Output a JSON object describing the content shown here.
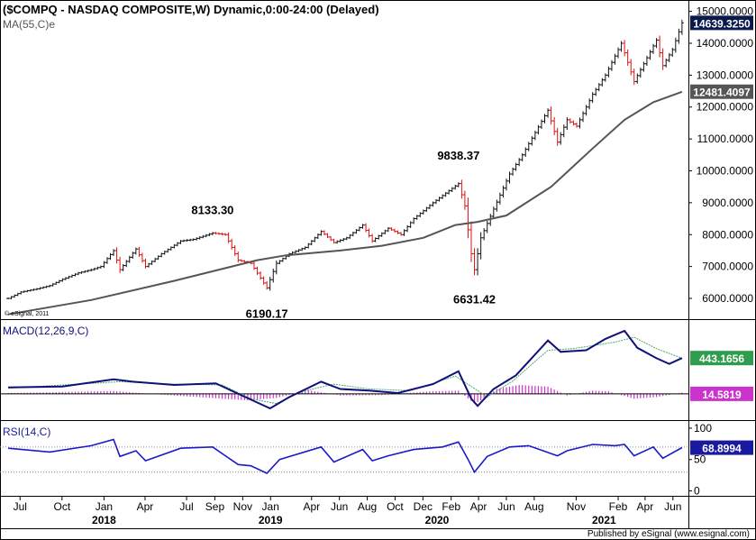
{
  "chart_data": [
    {
      "type": "ohlc",
      "title": "($COMPQ - NASDAQ COMPOSITE,W) Dynamic,0:00-24:00 (Delayed)",
      "overlay_label": "MA(55,C)e",
      "watermark": "© eSignal, 2011",
      "yticks": [
        "15000.0000",
        "14000.0000",
        "13000.0000",
        "12000.0000",
        "11000.0000",
        "10000.0000",
        "9000.0000",
        "8000.0000",
        "7000.0000",
        "6000.0000"
      ],
      "ylim": [
        5350,
        15300
      ],
      "last_price": "14639.3250",
      "ma_last": "12481.4097",
      "annotations": [
        {
          "text": "8133.30",
          "date": "2018-08-27",
          "value": 8133.3
        },
        {
          "text": "6190.17",
          "date": "2018-12-24",
          "value": 6190.17
        },
        {
          "text": "9838.37",
          "date": "2020-02-17",
          "value": 9838.37
        },
        {
          "text": "6631.42",
          "date": "2020-03-23",
          "value": 6631.42
        }
      ],
      "close_points": [
        [
          "2017-06-05",
          6000
        ],
        [
          "2017-07-03",
          6200
        ],
        [
          "2017-08-07",
          6300
        ],
        [
          "2017-09-04",
          6400
        ],
        [
          "2017-10-02",
          6600
        ],
        [
          "2017-11-06",
          6800
        ],
        [
          "2017-12-04",
          6900
        ],
        [
          "2017-12-25",
          7000
        ],
        [
          "2018-01-22",
          7500
        ],
        [
          "2018-02-05",
          6900
        ],
        [
          "2018-03-12",
          7550
        ],
        [
          "2018-04-02",
          7000
        ],
        [
          "2018-05-07",
          7400
        ],
        [
          "2018-06-18",
          7800
        ],
        [
          "2018-07-16",
          7850
        ],
        [
          "2018-08-27",
          8050
        ],
        [
          "2018-09-24",
          8000
        ],
        [
          "2018-10-22",
          7200
        ],
        [
          "2018-11-19",
          7100
        ],
        [
          "2018-12-24",
          6330
        ],
        [
          "2019-01-14",
          7100
        ],
        [
          "2019-02-11",
          7400
        ],
        [
          "2019-03-18",
          7600
        ],
        [
          "2019-04-22",
          8100
        ],
        [
          "2019-05-20",
          7750
        ],
        [
          "2019-06-17",
          7900
        ],
        [
          "2019-07-22",
          8300
        ],
        [
          "2019-08-12",
          7800
        ],
        [
          "2019-09-16",
          8200
        ],
        [
          "2019-10-14",
          8000
        ],
        [
          "2019-11-11",
          8500
        ],
        [
          "2019-12-23",
          9000
        ],
        [
          "2020-02-17",
          9600
        ],
        [
          "2020-03-02",
          8900
        ],
        [
          "2020-03-16",
          7400
        ],
        [
          "2020-03-23",
          6900
        ],
        [
          "2020-04-06",
          7900
        ],
        [
          "2020-05-04",
          8800
        ],
        [
          "2020-06-08",
          9900
        ],
        [
          "2020-07-06",
          10500
        ],
        [
          "2020-08-31",
          11900
        ],
        [
          "2020-09-21",
          10900
        ],
        [
          "2020-10-12",
          11600
        ],
        [
          "2020-11-02",
          11400
        ],
        [
          "2020-12-07",
          12400
        ],
        [
          "2021-01-04",
          13000
        ],
        [
          "2021-02-08",
          14000
        ],
        [
          "2021-03-08",
          12800
        ],
        [
          "2021-04-26",
          14100
        ],
        [
          "2021-05-10",
          13300
        ],
        [
          "2021-05-31",
          13800
        ],
        [
          "2021-06-21",
          14640
        ]
      ],
      "ma_points": [
        [
          "2017-06-05",
          5500
        ],
        [
          "2017-12-04",
          5950
        ],
        [
          "2018-06-04",
          6550
        ],
        [
          "2018-12-03",
          7200
        ],
        [
          "2019-02-04",
          7350
        ],
        [
          "2019-06-03",
          7500
        ],
        [
          "2019-09-02",
          7650
        ],
        [
          "2019-12-02",
          7900
        ],
        [
          "2020-02-10",
          8300
        ],
        [
          "2020-03-30",
          8400
        ],
        [
          "2020-06-01",
          8600
        ],
        [
          "2020-09-07",
          9500
        ],
        [
          "2020-12-07",
          10700
        ],
        [
          "2021-02-15",
          11600
        ],
        [
          "2021-04-19",
          12150
        ],
        [
          "2021-06-21",
          12480
        ]
      ]
    },
    {
      "type": "macd",
      "label": "MACD(12,26,9,C)",
      "last_value": "443.1656",
      "histogram_last": "14.5819",
      "macd_points": [
        [
          "2017-06-05",
          80
        ],
        [
          "2017-10-02",
          90
        ],
        [
          "2018-01-22",
          180
        ],
        [
          "2018-03-05",
          150
        ],
        [
          "2018-06-04",
          110
        ],
        [
          "2018-09-03",
          130
        ],
        [
          "2018-10-15",
          20
        ],
        [
          "2018-12-31",
          -180
        ],
        [
          "2019-02-11",
          -40
        ],
        [
          "2019-04-22",
          150
        ],
        [
          "2019-06-03",
          60
        ],
        [
          "2019-08-05",
          40
        ],
        [
          "2019-10-07",
          10
        ],
        [
          "2019-12-23",
          120
        ],
        [
          "2020-02-17",
          280
        ],
        [
          "2020-03-16",
          -60
        ],
        [
          "2020-03-30",
          -150
        ],
        [
          "2020-05-04",
          60
        ],
        [
          "2020-06-22",
          230
        ],
        [
          "2020-08-31",
          660
        ],
        [
          "2020-09-28",
          520
        ],
        [
          "2020-11-23",
          540
        ],
        [
          "2021-01-04",
          680
        ],
        [
          "2021-02-15",
          780
        ],
        [
          "2021-03-15",
          570
        ],
        [
          "2021-04-26",
          440
        ],
        [
          "2021-05-24",
          370
        ],
        [
          "2021-06-21",
          443
        ]
      ],
      "signal_points": [
        [
          "2017-06-05",
          70
        ],
        [
          "2018-02-05",
          150
        ],
        [
          "2018-06-04",
          120
        ],
        [
          "2018-09-17",
          110
        ],
        [
          "2018-11-19",
          -60
        ],
        [
          "2019-01-14",
          -120
        ],
        [
          "2019-03-11",
          30
        ],
        [
          "2019-05-20",
          120
        ],
        [
          "2019-08-05",
          60
        ],
        [
          "2019-11-04",
          40
        ],
        [
          "2020-02-10",
          220
        ],
        [
          "2020-03-30",
          40
        ],
        [
          "2020-04-20",
          -40
        ],
        [
          "2020-06-15",
          160
        ],
        [
          "2020-08-31",
          540
        ],
        [
          "2020-10-26",
          560
        ],
        [
          "2021-01-25",
          640
        ],
        [
          "2021-03-08",
          700
        ],
        [
          "2021-04-26",
          560
        ],
        [
          "2021-06-21",
          440
        ]
      ],
      "histogram_points": [
        [
          "2017-06-05",
          10
        ],
        [
          "2018-01-22",
          35
        ],
        [
          "2018-05-07",
          -10
        ],
        [
          "2018-11-12",
          -80
        ],
        [
          "2019-01-14",
          -50
        ],
        [
          "2019-03-25",
          45
        ],
        [
          "2019-06-03",
          -20
        ],
        [
          "2019-09-02",
          -15
        ],
        [
          "2019-12-16",
          30
        ],
        [
          "2020-02-17",
          40
        ],
        [
          "2020-03-23",
          -120
        ],
        [
          "2020-04-13",
          -60
        ],
        [
          "2020-05-11",
          60
        ],
        [
          "2020-06-29",
          110
        ],
        [
          "2020-08-31",
          90
        ],
        [
          "2020-10-12",
          -20
        ],
        [
          "2020-12-07",
          40
        ],
        [
          "2021-01-11",
          30
        ],
        [
          "2021-03-08",
          -60
        ],
        [
          "2021-04-26",
          -40
        ],
        [
          "2021-06-21",
          15
        ]
      ],
      "ylim": [
        -280,
        880
      ]
    },
    {
      "type": "line",
      "label": "RSI(14,C)",
      "last_value": "68.8994",
      "yticks": [
        "100",
        "50",
        "0"
      ],
      "levels": [
        70,
        30
      ],
      "ylim": [
        -5,
        110
      ],
      "rsi_points": [
        [
          "2017-06-05",
          68
        ],
        [
          "2017-09-04",
          62
        ],
        [
          "2017-12-04",
          72
        ],
        [
          "2018-01-22",
          82
        ],
        [
          "2018-02-05",
          55
        ],
        [
          "2018-03-12",
          64
        ],
        [
          "2018-04-02",
          48
        ],
        [
          "2018-06-18",
          68
        ],
        [
          "2018-08-27",
          70
        ],
        [
          "2018-10-22",
          42
        ],
        [
          "2018-11-19",
          40
        ],
        [
          "2018-12-24",
          28
        ],
        [
          "2019-01-21",
          50
        ],
        [
          "2019-04-22",
          70
        ],
        [
          "2019-05-20",
          46
        ],
        [
          "2019-07-22",
          66
        ],
        [
          "2019-08-12",
          48
        ],
        [
          "2019-09-16",
          56
        ],
        [
          "2019-11-11",
          66
        ],
        [
          "2020-01-13",
          70
        ],
        [
          "2020-02-17",
          78
        ],
        [
          "2020-03-09",
          50
        ],
        [
          "2020-03-23",
          30
        ],
        [
          "2020-04-20",
          55
        ],
        [
          "2020-06-08",
          70
        ],
        [
          "2020-07-20",
          72
        ],
        [
          "2020-09-21",
          56
        ],
        [
          "2020-10-12",
          64
        ],
        [
          "2020-12-07",
          74
        ],
        [
          "2021-01-25",
          72
        ],
        [
          "2021-02-15",
          74
        ],
        [
          "2021-03-08",
          56
        ],
        [
          "2021-04-19",
          70
        ],
        [
          "2021-05-10",
          52
        ],
        [
          "2021-06-21",
          69
        ]
      ]
    }
  ],
  "x_axis": {
    "start": "2017-05-22",
    "end": "2021-07-05",
    "months": [
      {
        "label": "Jul",
        "date": "2017-07-01"
      },
      {
        "label": "Oct",
        "date": "2017-10-01"
      },
      {
        "label": "Jan",
        "date": "2018-01-01"
      },
      {
        "label": "Apr",
        "date": "2018-04-01"
      },
      {
        "label": "Jul",
        "date": "2018-07-01"
      },
      {
        "label": "Sep",
        "date": "2018-09-01"
      },
      {
        "label": "Nov",
        "date": "2018-11-01"
      },
      {
        "label": "Jan",
        "date": "2019-01-01"
      },
      {
        "label": "Apr",
        "date": "2019-04-01"
      },
      {
        "label": "Jun",
        "date": "2019-06-01"
      },
      {
        "label": "Aug",
        "date": "2019-08-01"
      },
      {
        "label": "Oct",
        "date": "2019-10-01"
      },
      {
        "label": "Dec",
        "date": "2019-12-01"
      },
      {
        "label": "Feb",
        "date": "2020-02-01"
      },
      {
        "label": "Apr",
        "date": "2020-04-01"
      },
      {
        "label": "Jun",
        "date": "2020-06-01"
      },
      {
        "label": "Aug",
        "date": "2020-08-01"
      },
      {
        "label": "Nov",
        "date": "2020-11-01"
      },
      {
        "label": "Feb",
        "date": "2021-02-01"
      },
      {
        "label": "Apr",
        "date": "2021-04-01"
      },
      {
        "label": "Jun",
        "date": "2021-06-01"
      }
    ],
    "years": [
      {
        "label": "2018",
        "date": "2018-01-01"
      },
      {
        "label": "2019",
        "date": "2019-01-01"
      },
      {
        "label": "2020",
        "date": "2020-01-01"
      },
      {
        "label": "2021",
        "date": "2021-01-01"
      }
    ]
  },
  "colors": {
    "up_bar": "#111111",
    "down_bar": "#e01010",
    "ma_line": "#555555",
    "macd_line": "#10107a",
    "signal_line": "#4aa96c",
    "histogram": "#cc33cc",
    "rsi_line": "#1a1acc",
    "price_box": "#0a1a4a",
    "ma_box": "#555555",
    "macd_box": "#2e9e4e",
    "hist_box": "#cc33cc",
    "rsi_box": "#1a1aa0"
  },
  "footer": "Published by eSignal (www.esignal.com)"
}
